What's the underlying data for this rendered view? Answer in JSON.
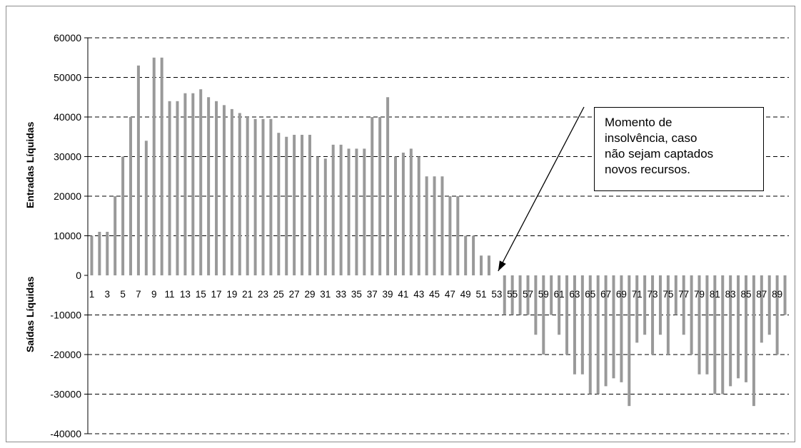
{
  "chart_data": {
    "type": "bar",
    "ylabel_positive": "Entradas Líquidas",
    "ylabel_negative": "Saídas Líquidas",
    "ylim": [
      -40000,
      60000
    ],
    "yticks": [
      60000,
      50000,
      40000,
      30000,
      20000,
      10000,
      0,
      -10000,
      -20000,
      -30000,
      -40000
    ],
    "grid": true,
    "x": [
      1,
      2,
      3,
      4,
      5,
      6,
      7,
      8,
      9,
      10,
      11,
      12,
      13,
      14,
      15,
      16,
      17,
      18,
      19,
      20,
      21,
      22,
      23,
      24,
      25,
      26,
      27,
      28,
      29,
      30,
      31,
      32,
      33,
      34,
      35,
      36,
      37,
      38,
      39,
      40,
      41,
      42,
      43,
      44,
      45,
      46,
      47,
      48,
      49,
      50,
      51,
      52,
      53,
      54,
      55,
      56,
      57,
      58,
      59,
      60,
      61,
      62,
      63,
      64,
      65,
      66,
      67,
      68,
      69,
      70,
      71,
      72,
      73,
      74,
      75,
      76,
      77,
      78,
      79,
      80,
      81,
      82,
      83,
      84,
      85,
      86,
      87,
      88,
      89,
      90
    ],
    "xtick_labels": [
      "1",
      "3",
      "5",
      "7",
      "9",
      "11",
      "13",
      "15",
      "17",
      "19",
      "21",
      "23",
      "25",
      "27",
      "29",
      "31",
      "33",
      "35",
      "37",
      "39",
      "41",
      "43",
      "45",
      "47",
      "49",
      "51",
      "53",
      "55",
      "57",
      "59",
      "61",
      "63",
      "65",
      "67",
      "69",
      "71",
      "73",
      "75",
      "77",
      "79",
      "81",
      "83",
      "85",
      "87",
      "89"
    ],
    "values": [
      10000,
      11000,
      11000,
      20000,
      30000,
      40000,
      53000,
      34000,
      55000,
      55000,
      44000,
      44000,
      46000,
      46000,
      47000,
      45000,
      44000,
      43000,
      42000,
      41000,
      40000,
      39500,
      39500,
      39500,
      36000,
      35000,
      35500,
      35500,
      35500,
      30000,
      29500,
      33000,
      33000,
      32000,
      32000,
      32000,
      40000,
      40000,
      45000,
      30000,
      31000,
      32000,
      30000,
      25000,
      25000,
      25000,
      20000,
      20000,
      10000,
      10000,
      5000,
      5000,
      0,
      -10000,
      -10000,
      -10000,
      -10000,
      -15000,
      -20000,
      -10000,
      -15000,
      -20000,
      -25000,
      -25000,
      -30000,
      -30000,
      -28000,
      -26000,
      -27000,
      -33000,
      -17000,
      -15000,
      -20000,
      -15000,
      -20000,
      -10000,
      -15000,
      -20000,
      -25000,
      -25000,
      -30000,
      -30000,
      -28000,
      -26000,
      -27000,
      -33000,
      -17000,
      -15000,
      -20000,
      -10000
    ],
    "annotation": {
      "lines": [
        "Momento de",
        "insolvência, caso",
        "não sejam captados",
        "novos recursos."
      ],
      "points_to_x": 53
    },
    "colors": {
      "bar": "#999999",
      "grid": "#000000",
      "frame": "#8c8c8c"
    }
  }
}
